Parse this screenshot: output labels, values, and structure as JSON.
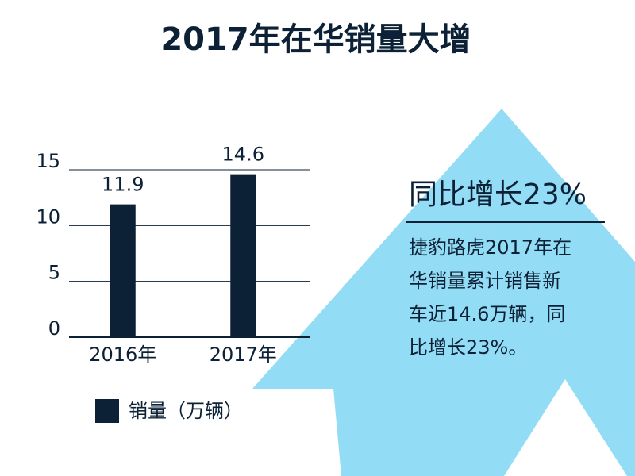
{
  "chart_data": {
    "type": "bar",
    "title": "2017年在华销量大增",
    "categories": [
      "2016年",
      "2017年"
    ],
    "series": [
      {
        "name": "销量（万辆）",
        "color": "#0d2136",
        "values": [
          11.9,
          14.6
        ]
      }
    ],
    "ylim": [
      0,
      15
    ],
    "yticks": [
      0,
      5,
      10,
      15
    ],
    "grid": true,
    "annotation": {
      "heading": "同比增长23%",
      "lines": [
        "捷豹路虎2017年在",
        "华销量累计销售新",
        "车近14.6万辆，同",
        "比增长23%。"
      ]
    }
  }
}
